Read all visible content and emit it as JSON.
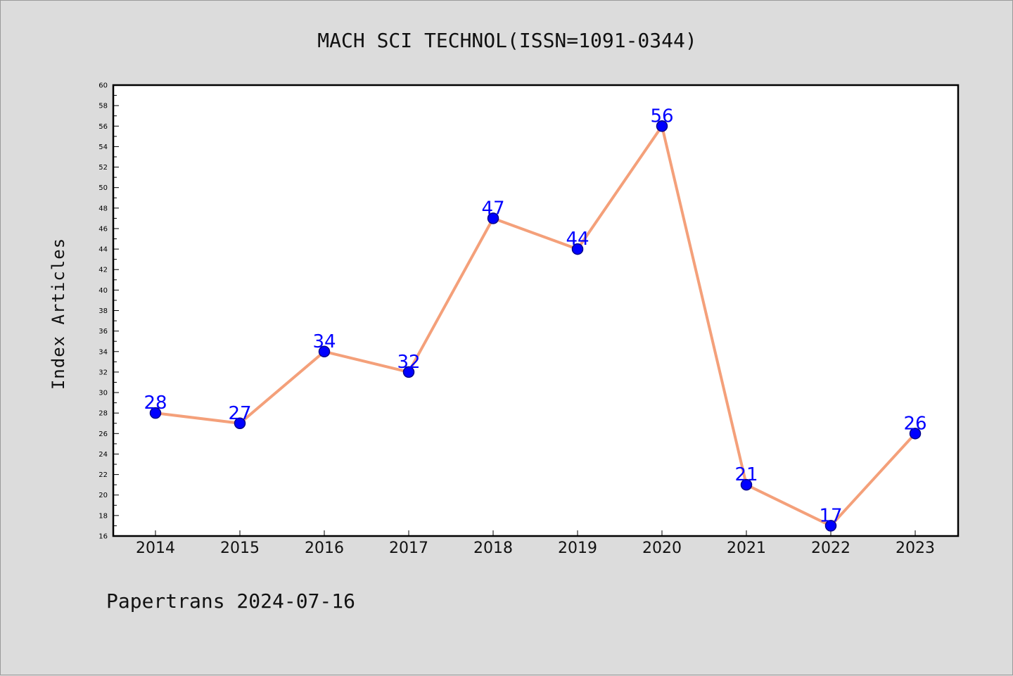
{
  "colors": {
    "background": "#dcdcdc",
    "plot_background": "#ffffff",
    "line": "#f4a07a",
    "marker_fill": "#0000ff",
    "marker_stroke": "#00008b",
    "data_label": "#0000ff"
  },
  "footer": "Papertrans 2024-07-16",
  "chart_data": {
    "type": "line",
    "title": "MACH SCI TECHNOL(ISSN=1091-0344)",
    "xlabel": "",
    "ylabel": "Index Articles",
    "categories": [
      "2014",
      "2015",
      "2016",
      "2017",
      "2018",
      "2019",
      "2020",
      "2021",
      "2022",
      "2023"
    ],
    "values": [
      28,
      27,
      34,
      32,
      47,
      44,
      56,
      21,
      17,
      26
    ],
    "ylim": [
      16,
      60
    ],
    "yticks": [
      16,
      18,
      20,
      22,
      24,
      26,
      28,
      30,
      32,
      34,
      36,
      38,
      40,
      42,
      44,
      46,
      48,
      50,
      52,
      54,
      56,
      58,
      60
    ],
    "grid": false,
    "legend": "none",
    "data_labels": true
  }
}
